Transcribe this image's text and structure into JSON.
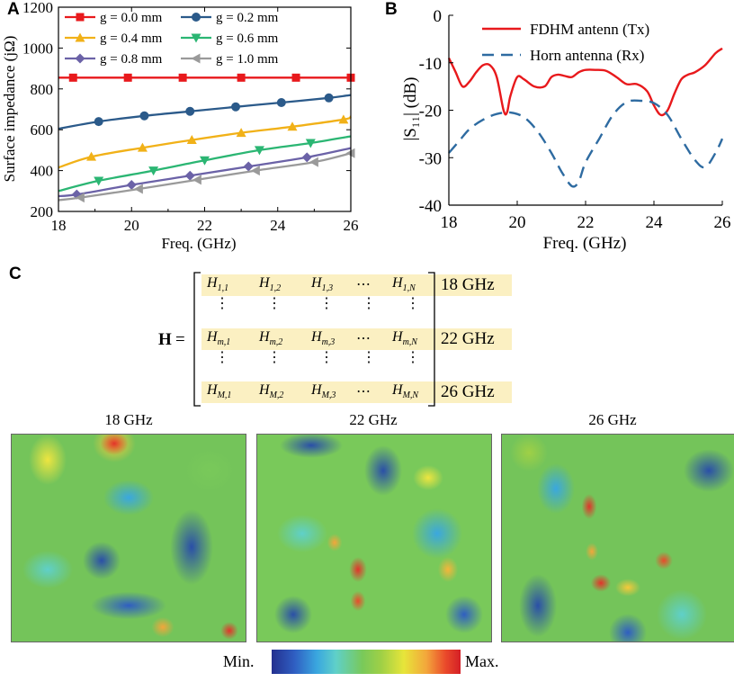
{
  "panels": {
    "a": "A",
    "b": "B",
    "c": "C"
  },
  "chart_data": [
    {
      "type": "line",
      "panel": "A",
      "xlabel": "Freq. (GHz)",
      "ylabel": "Surface impedance (jΩ)",
      "xlim": [
        18,
        26
      ],
      "ylim": [
        200,
        1200
      ],
      "xticks": [
        "18",
        "20",
        "22",
        "24",
        "26"
      ],
      "yticks": [
        "200",
        "400",
        "600",
        "800",
        "1000",
        "1200"
      ],
      "legend_position": "top",
      "series": [
        {
          "name": "g = 0.0 mm",
          "color": "#e8191c",
          "marker": "square",
          "x": [
            18,
            18.4,
            19.9,
            21.4,
            23.0,
            24.5,
            26.0
          ],
          "y": [
            855,
            855,
            855,
            855,
            855,
            855,
            855
          ],
          "markers_x": [
            18.4,
            19.9,
            21.4,
            23.0,
            24.5,
            26.0
          ]
        },
        {
          "name": "g = 0.2 mm",
          "color": "#2b5a8a",
          "marker": "circle",
          "x": [
            18,
            19.1,
            20.35,
            21.6,
            22.85,
            24.1,
            25.4,
            26
          ],
          "y": [
            605,
            640,
            668,
            690,
            712,
            733,
            756,
            770
          ],
          "markers_x": [
            19.1,
            20.35,
            21.6,
            22.85,
            24.1,
            25.4
          ]
        },
        {
          "name": "g = 0.4 mm",
          "color": "#f1b118",
          "marker": "triangle-up",
          "x": [
            18,
            18.9,
            20.3,
            21.65,
            23.0,
            24.4,
            25.8,
            26
          ],
          "y": [
            415,
            468,
            512,
            550,
            585,
            615,
            650,
            665
          ],
          "markers_x": [
            18.9,
            20.3,
            21.65,
            23.0,
            24.4,
            25.8
          ]
        },
        {
          "name": "g = 0.6 mm",
          "color": "#2bb673",
          "marker": "triangle-down",
          "x": [
            18,
            19.1,
            20.6,
            22.0,
            23.5,
            24.9,
            26
          ],
          "y": [
            300,
            350,
            400,
            450,
            500,
            535,
            568
          ],
          "markers_x": [
            19.1,
            20.6,
            22.0,
            23.5,
            24.9
          ]
        },
        {
          "name": "g = 0.8 mm",
          "color": "#6b62a7",
          "marker": "diamond",
          "x": [
            18,
            18.5,
            20.0,
            21.6,
            23.2,
            24.8,
            26
          ],
          "y": [
            275,
            283,
            330,
            375,
            420,
            465,
            510
          ],
          "markers_x": [
            18.5,
            20.0,
            21.6,
            23.2,
            24.8
          ]
        },
        {
          "name": "g = 1.0 mm",
          "color": "#9a9a9a",
          "marker": "triangle-left",
          "x": [
            18,
            18.6,
            20.2,
            21.8,
            23.4,
            25.0,
            26
          ],
          "y": [
            255,
            268,
            310,
            355,
            400,
            442,
            485
          ],
          "markers_x": [
            18.6,
            20.2,
            21.8,
            23.4,
            25.0,
            26.0
          ]
        }
      ]
    },
    {
      "type": "line",
      "panel": "B",
      "xlabel": "Freq. (GHz)",
      "ylabel": "|S₁₁| (dB)",
      "xlim": [
        18,
        26
      ],
      "ylim": [
        -40,
        0
      ],
      "xticks": [
        "18",
        "20",
        "22",
        "24",
        "26"
      ],
      "yticks": [
        "0",
        "-10",
        "-20",
        "-30",
        "-40"
      ],
      "legend_position": "top-right",
      "series": [
        {
          "name": "FDHM antenn (Tx)",
          "color": "#e8191c",
          "dash": "solid",
          "x": [
            18,
            18.2,
            18.4,
            18.6,
            18.8,
            19.0,
            19.2,
            19.4,
            19.6,
            19.7,
            19.8,
            20.0,
            20.2,
            20.5,
            20.8,
            21.0,
            21.2,
            21.4,
            21.6,
            21.8,
            22.0,
            22.3,
            22.6,
            22.9,
            23.2,
            23.5,
            23.8,
            24.0,
            24.2,
            24.4,
            24.6,
            24.8,
            25.0,
            25.2,
            25.5,
            25.8,
            26.0
          ],
          "y": [
            -9,
            -12,
            -15,
            -14,
            -12,
            -10.5,
            -10.5,
            -13,
            -20,
            -20.5,
            -17,
            -13,
            -13.5,
            -15,
            -15,
            -13,
            -12.5,
            -12.8,
            -13,
            -12,
            -11.5,
            -11.5,
            -11.7,
            -13,
            -14.5,
            -14.5,
            -16,
            -19,
            -21,
            -20,
            -16.5,
            -13.5,
            -12.5,
            -12,
            -10.5,
            -8,
            -7
          ]
        },
        {
          "name": "Horn antenna (Rx)",
          "color": "#2e6ba1",
          "dash": "dashed",
          "x": [
            18,
            18.3,
            18.6,
            19.0,
            19.4,
            19.8,
            20.2,
            20.6,
            21.0,
            21.3,
            21.6,
            21.8,
            22.0,
            22.4,
            22.8,
            23.2,
            23.6,
            24.0,
            24.4,
            24.8,
            25.2,
            25.5,
            25.8,
            26.0
          ],
          "y": [
            -29,
            -26.5,
            -24,
            -22,
            -20.8,
            -20.5,
            -21.5,
            -24.5,
            -29,
            -33,
            -36,
            -35,
            -31,
            -26,
            -21,
            -18.3,
            -18,
            -18.5,
            -21,
            -26,
            -30.5,
            -32,
            -29,
            -26
          ]
        }
      ]
    }
  ],
  "matrix": {
    "symbol": "H",
    "equals": "=",
    "rows": [
      {
        "cells": [
          "H",
          "H",
          "H",
          "⋯",
          "H"
        ],
        "subs": [
          "1,1",
          "1,2",
          "1,3",
          "",
          "1,N"
        ],
        "freq": "18 GHz"
      },
      {
        "cells": [
          "H",
          "H",
          "H",
          "⋯",
          "H"
        ],
        "subs": [
          "m,1",
          "m,2",
          "m,3",
          "",
          "m,N"
        ],
        "freq": "22 GHz"
      },
      {
        "cells": [
          "H",
          "H",
          "H",
          "⋯",
          "H"
        ],
        "subs": [
          "M,1",
          "M,2",
          "M,3",
          "",
          "M,N"
        ],
        "freq": "26 GHz"
      }
    ]
  },
  "heatmaps": [
    {
      "title": "18 GHz"
    },
    {
      "title": "22 GHz"
    },
    {
      "title": "26 GHz"
    }
  ],
  "colorbar": {
    "min": "Min.",
    "max": "Max."
  }
}
